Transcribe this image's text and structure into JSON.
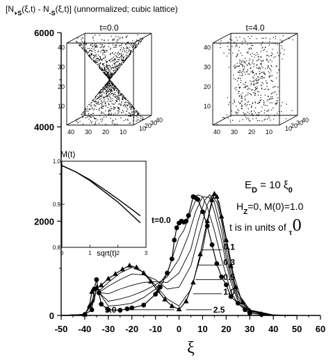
{
  "chart_data": {
    "type": "line",
    "title": "[N+S(ξ,t) - N-S(ξ,t)] (unnormalized; cubic lattice)",
    "title_parts": [
      "[N",
      "+S",
      "(ξ,t) - N",
      "-S",
      "(ξ,t)] (unnormalized; cubic lattice)"
    ],
    "xlabel": "ξ",
    "ylabel": "",
    "xlim": [
      -50,
      60
    ],
    "ylim": [
      0,
      6000
    ],
    "xticks": [
      "-50",
      "-40",
      "-30",
      "-20",
      "-10",
      "0",
      "10",
      "20",
      "30",
      "40",
      "50",
      "60"
    ],
    "yticks": [
      "0",
      "2000",
      "4000",
      "6000"
    ],
    "series": [
      {
        "name": "0.0",
        "marker": "circle",
        "points": [
          [
            -50,
            0
          ],
          [
            -45,
            4
          ],
          [
            -40,
            20
          ],
          [
            -37,
            120
          ],
          [
            -36,
            560
          ],
          [
            -35,
            760
          ],
          [
            -34,
            480
          ],
          [
            -33,
            240
          ],
          [
            -30,
            120
          ],
          [
            -25,
            110
          ],
          [
            -22,
            140
          ],
          [
            -20,
            160
          ],
          [
            -15,
            220
          ],
          [
            -10,
            450
          ],
          [
            -8,
            600
          ],
          [
            -5,
            900
          ],
          [
            -3,
            1200
          ],
          [
            -2,
            1600
          ],
          [
            -1,
            1860
          ],
          [
            0,
            1960
          ],
          [
            1,
            2000
          ],
          [
            2,
            1980
          ],
          [
            3,
            2000
          ],
          [
            4,
            2120
          ],
          [
            6,
            2520
          ],
          [
            7,
            2500
          ],
          [
            8,
            2460
          ],
          [
            10,
            2200
          ],
          [
            12,
            1900
          ],
          [
            14,
            1500
          ],
          [
            16,
            1100
          ],
          [
            18,
            820
          ],
          [
            20,
            650
          ],
          [
            22,
            400
          ],
          [
            25,
            260
          ],
          [
            28,
            120
          ],
          [
            30,
            50
          ],
          [
            35,
            20
          ],
          [
            40,
            10
          ],
          [
            45,
            5
          ],
          [
            50,
            0
          ]
        ]
      },
      {
        "name": "0.1",
        "marker": "none",
        "points": [
          [
            -50,
            0
          ],
          [
            -40,
            20
          ],
          [
            -36,
            300
          ],
          [
            -35,
            640
          ],
          [
            -33,
            420
          ],
          [
            -30,
            200
          ],
          [
            -25,
            220
          ],
          [
            -20,
            260
          ],
          [
            -15,
            380
          ],
          [
            -10,
            560
          ],
          [
            -5,
            900
          ],
          [
            0,
            1650
          ],
          [
            2,
            1800
          ],
          [
            5,
            2200
          ],
          [
            8,
            2560
          ],
          [
            10,
            2520
          ],
          [
            12,
            2300
          ],
          [
            15,
            1800
          ],
          [
            18,
            1200
          ],
          [
            20,
            850
          ],
          [
            22,
            500
          ],
          [
            25,
            250
          ],
          [
            30,
            80
          ],
          [
            40,
            10
          ],
          [
            50,
            0
          ]
        ]
      },
      {
        "name": "0.3",
        "marker": "none",
        "points": [
          [
            -50,
            0
          ],
          [
            -40,
            20
          ],
          [
            -36,
            320
          ],
          [
            -35,
            600
          ],
          [
            -33,
            440
          ],
          [
            -30,
            300
          ],
          [
            -25,
            350
          ],
          [
            -20,
            420
          ],
          [
            -15,
            520
          ],
          [
            -10,
            650
          ],
          [
            -5,
            820
          ],
          [
            0,
            1200
          ],
          [
            4,
            1700
          ],
          [
            7,
            2200
          ],
          [
            10,
            2520
          ],
          [
            13,
            2500
          ],
          [
            15,
            2200
          ],
          [
            18,
            1600
          ],
          [
            20,
            1100
          ],
          [
            22,
            700
          ],
          [
            25,
            300
          ],
          [
            30,
            80
          ],
          [
            40,
            10
          ],
          [
            50,
            0
          ]
        ]
      },
      {
        "name": "0.5",
        "marker": "none",
        "points": [
          [
            -50,
            0
          ],
          [
            -40,
            20
          ],
          [
            -36,
            340
          ],
          [
            -35,
            580
          ],
          [
            -33,
            480
          ],
          [
            -30,
            460
          ],
          [
            -25,
            560
          ],
          [
            -20,
            640
          ],
          [
            -15,
            700
          ],
          [
            -10,
            720
          ],
          [
            -5,
            700
          ],
          [
            0,
            900
          ],
          [
            5,
            1400
          ],
          [
            8,
            2000
          ],
          [
            11,
            2450
          ],
          [
            13,
            2560
          ],
          [
            15,
            2400
          ],
          [
            18,
            1800
          ],
          [
            20,
            1250
          ],
          [
            22,
            800
          ],
          [
            25,
            350
          ],
          [
            30,
            100
          ],
          [
            40,
            10
          ],
          [
            50,
            0
          ]
        ]
      },
      {
        "name": "1.0",
        "marker": "none",
        "points": [
          [
            -50,
            0
          ],
          [
            -40,
            20
          ],
          [
            -36,
            360
          ],
          [
            -35,
            560
          ],
          [
            -33,
            520
          ],
          [
            -30,
            620
          ],
          [
            -25,
            760
          ],
          [
            -20,
            880
          ],
          [
            -15,
            860
          ],
          [
            -10,
            760
          ],
          [
            -5,
            560
          ],
          [
            0,
            600
          ],
          [
            5,
            1050
          ],
          [
            9,
            1800
          ],
          [
            12,
            2350
          ],
          [
            14,
            2550
          ],
          [
            16,
            2400
          ],
          [
            18,
            2000
          ],
          [
            20,
            1400
          ],
          [
            22,
            900
          ],
          [
            25,
            400
          ],
          [
            30,
            100
          ],
          [
            40,
            10
          ],
          [
            50,
            0
          ]
        ]
      },
      {
        "name": "2.5",
        "marker": "none",
        "points": [
          [
            -50,
            0
          ],
          [
            -40,
            20
          ],
          [
            -37,
            300
          ],
          [
            -35,
            540
          ],
          [
            -33,
            560
          ],
          [
            -30,
            700
          ],
          [
            -25,
            900
          ],
          [
            -20,
            1020
          ],
          [
            -15,
            920
          ],
          [
            -10,
            640
          ],
          [
            -5,
            350
          ],
          [
            0,
            200
          ],
          [
            5,
            550
          ],
          [
            10,
            1400
          ],
          [
            13,
            2200
          ],
          [
            15,
            2580
          ],
          [
            17,
            2400
          ],
          [
            19,
            1900
          ],
          [
            21,
            1400
          ],
          [
            23,
            900
          ],
          [
            26,
            400
          ],
          [
            30,
            120
          ],
          [
            40,
            10
          ],
          [
            50,
            0
          ]
        ]
      },
      {
        "name": "5.0",
        "marker": "triangle",
        "points": [
          [
            -50,
            0
          ],
          [
            -40,
            20
          ],
          [
            -38,
            200
          ],
          [
            -37,
            500
          ],
          [
            -35,
            580
          ],
          [
            -33,
            640
          ],
          [
            -30,
            780
          ],
          [
            -27,
            880
          ],
          [
            -24,
            980
          ],
          [
            -21,
            1060
          ],
          [
            -18,
            1020
          ],
          [
            -15,
            900
          ],
          [
            -12,
            720
          ],
          [
            -9,
            520
          ],
          [
            -6,
            340
          ],
          [
            -3,
            200
          ],
          [
            0,
            130
          ],
          [
            3,
            300
          ],
          [
            6,
            700
          ],
          [
            9,
            1300
          ],
          [
            12,
            2000
          ],
          [
            14,
            2450
          ],
          [
            15,
            2580
          ],
          [
            16,
            2520
          ],
          [
            18,
            2100
          ],
          [
            20,
            1600
          ],
          [
            22,
            1050
          ],
          [
            24,
            600
          ],
          [
            27,
            280
          ],
          [
            30,
            100
          ],
          [
            35,
            30
          ],
          [
            40,
            10
          ],
          [
            45,
            5
          ],
          [
            50,
            0
          ]
        ]
      }
    ],
    "annotations": {
      "ed": [
        "E",
        "D",
        " = 10 ξ",
        "0"
      ],
      "hz": [
        "H",
        "Z",
        "=0, M(0)=1.0"
      ],
      "units": [
        "t is in units of ",
        "τ",
        "0"
      ],
      "t_label_first": "t=0.0",
      "curve_labels": [
        "0.1",
        "0.3",
        "0.5",
        "1.0",
        "2.5",
        "5.0"
      ]
    },
    "inset_m": {
      "type": "line",
      "title": "M(t)",
      "xlabel": "sqrt(t)",
      "xlim": [
        0,
        3
      ],
      "ylim": [
        0.8,
        1.0
      ],
      "xticks": [
        "0",
        "1",
        "2",
        "3"
      ],
      "yticks": [
        "0.8",
        "0.9",
        "1.0"
      ],
      "series": [
        {
          "points": [
            [
              0,
              0.99
            ],
            [
              0.5,
              0.975
            ],
            [
              1,
              0.955
            ],
            [
              1.5,
              0.93
            ],
            [
              2,
              0.905
            ],
            [
              2.5,
              0.875
            ],
            [
              2.8,
              0.857
            ]
          ]
        },
        {
          "points": [
            [
              0,
              0.99
            ],
            [
              0.5,
              0.975
            ],
            [
              1,
              0.957
            ],
            [
              1.5,
              0.935
            ],
            [
              2,
              0.912
            ],
            [
              2.5,
              0.888
            ],
            [
              2.8,
              0.873
            ]
          ]
        }
      ]
    },
    "inset_cubes": [
      {
        "title": "t=0.0",
        "ticks": [
          "10",
          "20",
          "30",
          "40"
        ]
      },
      {
        "title": "t=4.0",
        "ticks": [
          "10",
          "20",
          "30",
          "40"
        ]
      }
    ]
  }
}
